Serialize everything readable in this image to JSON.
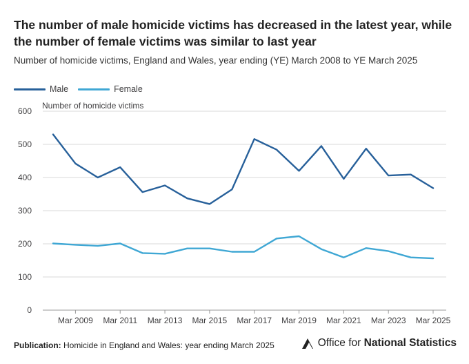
{
  "title": "The number of male homicide victims has decreased in the latest year, while the number of female victims was similar to last year",
  "subtitle": "Number of homicide victims, England and Wales, year ending (YE) March 2008 to YE March 2025",
  "footer": {
    "publication_label": "Publication:",
    "publication_text": "Homicide in England and Wales: year ending March 2025",
    "logo_regular": "Office for ",
    "logo_bold": "National Statistics"
  },
  "colors": {
    "male": "#27609a",
    "female": "#3fa7d4",
    "grid": "#d9d9d9",
    "axis": "#999999"
  },
  "chart_data": {
    "type": "line",
    "ylabel": "Number of homicide victims",
    "ylim": [
      0,
      600
    ],
    "yticks": [
      0,
      100,
      200,
      300,
      400,
      500,
      600
    ],
    "x": [
      "Mar 2008",
      "Mar 2009",
      "Mar 2010",
      "Mar 2011",
      "Mar 2012",
      "Mar 2013",
      "Mar 2014",
      "Mar 2015",
      "Mar 2016",
      "Mar 2017",
      "Mar 2018",
      "Mar 2019",
      "Mar 2020",
      "Mar 2021",
      "Mar 2022",
      "Mar 2023",
      "Mar 2024",
      "Mar 2025"
    ],
    "xtick_labels": [
      "Mar 2009",
      "Mar 2011",
      "Mar 2013",
      "Mar 2015",
      "Mar 2017",
      "Mar 2019",
      "Mar 2021",
      "Mar 2023",
      "Mar 2025"
    ],
    "series": [
      {
        "name": "Male",
        "color": "#27609a",
        "values": [
          530,
          442,
          400,
          431,
          356,
          376,
          337,
          320,
          364,
          516,
          484,
          420,
          495,
          396,
          487,
          406,
          409,
          368
        ]
      },
      {
        "name": "Female",
        "color": "#3fa7d4",
        "values": [
          201,
          197,
          194,
          201,
          172,
          170,
          186,
          186,
          176,
          176,
          216,
          223,
          184,
          159,
          187,
          178,
          159,
          156
        ]
      }
    ],
    "legend_position": "top-left",
    "grid": true
  }
}
